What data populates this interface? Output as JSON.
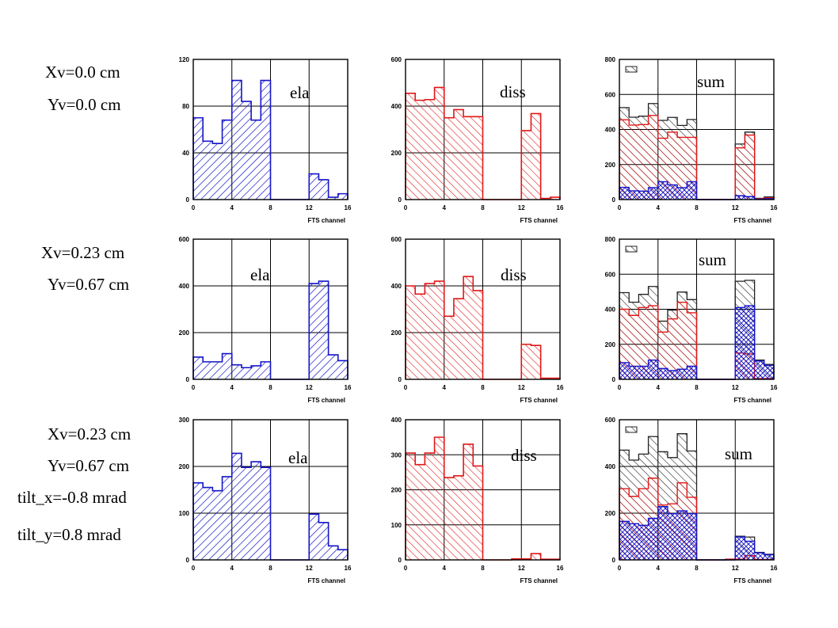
{
  "rows": [
    {
      "labels": [
        "Xv=0.0 cm",
        "Yv=0.0 cm"
      ]
    },
    {
      "labels": [
        "Xv=0.23 cm",
        "Yv=0.67 cm"
      ]
    },
    {
      "labels": [
        "Xv=0.23 cm",
        "Yv=0.67 cm",
        "tilt_x=-0.8 mrad",
        "tilt_y=0.8 mrad"
      ]
    }
  ],
  "colors": {
    "ela": "#1515c8",
    "diss": "#e01818",
    "sum": "#222222"
  },
  "chart_data": [
    {
      "type": "bar",
      "panel": "ela",
      "annotation": "ela",
      "xlabel": "FTS channel",
      "xlim": [
        0,
        16
      ],
      "xticks": [
        0,
        4,
        8,
        12,
        16
      ],
      "ylim": [
        0,
        120
      ],
      "yticks": [
        0,
        40,
        80,
        120
      ],
      "values": [
        70,
        50,
        48,
        68,
        102,
        84,
        68,
        102,
        0,
        0,
        0,
        0,
        22,
        17,
        2,
        5
      ]
    },
    {
      "type": "bar",
      "panel": "diss",
      "annotation": "diss",
      "xlabel": "FTS channel",
      "xlim": [
        0,
        16
      ],
      "xticks": [
        0,
        4,
        8,
        12,
        16
      ],
      "ylim": [
        0,
        600
      ],
      "yticks": [
        0,
        200,
        400,
        600
      ],
      "values": [
        455,
        425,
        428,
        480,
        350,
        385,
        355,
        355,
        0,
        0,
        0,
        0,
        295,
        368,
        5,
        10
      ]
    },
    {
      "type": "bar",
      "panel": "sum",
      "annotation": "sum",
      "xlabel": "FTS channel",
      "xlim": [
        0,
        16
      ],
      "xticks": [
        0,
        4,
        8,
        12,
        16
      ],
      "ylim": [
        0,
        800
      ],
      "yticks": [
        0,
        200,
        400,
        600,
        800
      ],
      "series": [
        {
          "values": [
            525,
            470,
            476,
            548,
            452,
            469,
            423,
            457,
            0,
            0,
            0,
            0,
            317,
            385,
            7,
            15
          ]
        },
        {
          "values": [
            455,
            425,
            428,
            480,
            350,
            385,
            355,
            355,
            0,
            0,
            0,
            0,
            295,
            368,
            5,
            10
          ]
        },
        {
          "values": [
            70,
            50,
            48,
            68,
            102,
            84,
            68,
            102,
            0,
            0,
            0,
            0,
            22,
            17,
            2,
            5
          ]
        }
      ]
    },
    {
      "type": "bar",
      "panel": "ela",
      "annotation": "ela",
      "xlabel": "FTS channel",
      "xlim": [
        0,
        16
      ],
      "xticks": [
        0,
        4,
        8,
        12,
        16
      ],
      "ylim": [
        0,
        600
      ],
      "yticks": [
        0,
        200,
        400,
        600
      ],
      "values": [
        95,
        75,
        75,
        110,
        62,
        50,
        58,
        75,
        0,
        0,
        0,
        0,
        410,
        420,
        105,
        80
      ]
    },
    {
      "type": "bar",
      "panel": "diss",
      "annotation": "diss",
      "xlabel": "FTS channel",
      "xlim": [
        0,
        16
      ],
      "xticks": [
        0,
        4,
        8,
        12,
        16
      ],
      "ylim": [
        0,
        600
      ],
      "yticks": [
        0,
        200,
        400,
        600
      ],
      "values": [
        400,
        365,
        410,
        420,
        270,
        345,
        440,
        380,
        0,
        0,
        0,
        0,
        150,
        145,
        5,
        5
      ]
    },
    {
      "type": "bar",
      "panel": "sum",
      "annotation": "sum",
      "xlabel": "FTS channel",
      "xlim": [
        0,
        16
      ],
      "xticks": [
        0,
        4,
        8,
        12,
        16
      ],
      "ylim": [
        0,
        800
      ],
      "yticks": [
        0,
        200,
        400,
        600,
        800
      ],
      "series": [
        {
          "values": [
            495,
            440,
            485,
            530,
            332,
            395,
            498,
            455,
            0,
            0,
            0,
            0,
            560,
            565,
            110,
            85
          ]
        },
        {
          "values": [
            400,
            365,
            410,
            420,
            270,
            345,
            440,
            380,
            0,
            0,
            0,
            0,
            150,
            145,
            5,
            5
          ]
        },
        {
          "values": [
            95,
            75,
            75,
            110,
            62,
            50,
            58,
            75,
            0,
            0,
            0,
            0,
            410,
            420,
            105,
            80
          ]
        }
      ]
    },
    {
      "type": "bar",
      "panel": "ela",
      "annotation": "ela",
      "xlabel": "FTS channel",
      "xlim": [
        0,
        16
      ],
      "xticks": [
        0,
        4,
        8,
        12,
        16
      ],
      "ylim": [
        0,
        300
      ],
      "yticks": [
        0,
        100,
        200,
        300
      ],
      "values": [
        165,
        155,
        148,
        178,
        228,
        198,
        210,
        198,
        0,
        0,
        0,
        0,
        98,
        80,
        30,
        22
      ]
    },
    {
      "type": "bar",
      "panel": "diss",
      "annotation": "diss",
      "xlabel": "FTS channel",
      "xlim": [
        0,
        16
      ],
      "xticks": [
        0,
        4,
        8,
        12,
        16
      ],
      "ylim": [
        0,
        400
      ],
      "yticks": [
        0,
        100,
        200,
        300,
        400
      ],
      "values": [
        305,
        272,
        305,
        350,
        235,
        240,
        330,
        268,
        0,
        0,
        0,
        3,
        3,
        18,
        2,
        2
      ]
    },
    {
      "type": "bar",
      "panel": "sum",
      "annotation": "sum",
      "xlabel": "FTS channel",
      "xlim": [
        0,
        16
      ],
      "xticks": [
        0,
        4,
        8,
        12,
        16
      ],
      "ylim": [
        0,
        600
      ],
      "yticks": [
        0,
        200,
        400,
        600
      ],
      "series": [
        {
          "values": [
            470,
            427,
            453,
            528,
            463,
            438,
            540,
            466,
            0,
            0,
            0,
            3,
            101,
            98,
            32,
            24
          ]
        },
        {
          "values": [
            305,
            272,
            305,
            350,
            235,
            240,
            330,
            268,
            0,
            0,
            0,
            3,
            3,
            18,
            2,
            2
          ]
        },
        {
          "values": [
            165,
            155,
            148,
            178,
            228,
            198,
            210,
            198,
            0,
            0,
            0,
            0,
            98,
            80,
            30,
            22
          ]
        }
      ]
    }
  ]
}
